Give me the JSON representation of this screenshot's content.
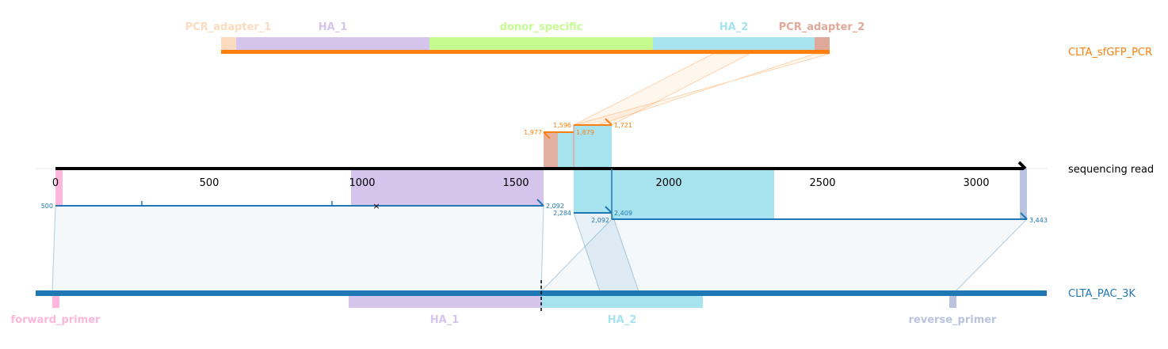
{
  "colors": {
    "orange": "#ff7f0e",
    "blue": "#1f77b4",
    "pcr_adapter_1": "#fddbbf",
    "ha_1": "#d5c4ec",
    "donor_specific": "#c5fb8f",
    "ha_2": "#a6e3ef",
    "pcr_adapter_2": "#e0a898",
    "forward_primer": "#ffb6dc",
    "reverse_primer": "#b8c4de"
  },
  "top_reference": {
    "name": "CLTA_sfGFP_PCR",
    "features": [
      "PCR_adapter_1",
      "HA_1",
      "donor_specific",
      "HA_2",
      "PCR_adapter_2"
    ]
  },
  "read": {
    "name": "sequencing read",
    "ticks": [
      "0",
      "500",
      "1000",
      "1500",
      "2000",
      "2500",
      "3000"
    ]
  },
  "bottom_reference": {
    "name": "CLTA_PAC_3K",
    "features": [
      "forward_primer",
      "HA_1",
      "HA_2",
      "reverse_primer"
    ]
  },
  "top_alignment_labels": [
    "1,977",
    "1,596",
    "1,879",
    "1,721"
  ],
  "bottom_alignment_labels": [
    "500",
    "2,092",
    "2,284",
    "2,409",
    "2,092",
    "3,443"
  ]
}
